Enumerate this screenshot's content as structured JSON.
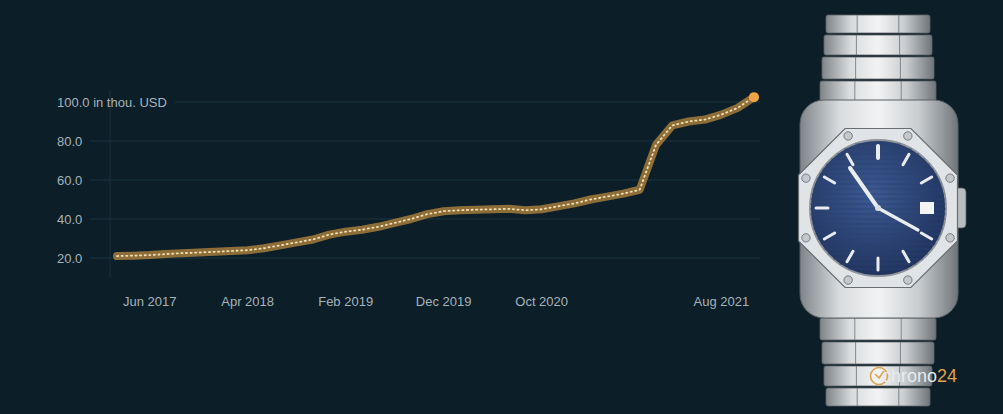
{
  "chart_data": {
    "type": "line",
    "categories": [
      null,
      null,
      "Jun 2017",
      null,
      null,
      null,
      null,
      null,
      "Apr 2018",
      null,
      null,
      null,
      null,
      null,
      "Feb 2019",
      null,
      null,
      null,
      null,
      null,
      "Dec 2019",
      null,
      null,
      null,
      null,
      null,
      "Oct 2020",
      null,
      null,
      null,
      null,
      null,
      null,
      null,
      null,
      null,
      null,
      "Aug 2021",
      null,
      null
    ],
    "values": [
      21.0,
      21.2,
      21.5,
      22.0,
      22.5,
      22.8,
      23.2,
      23.6,
      24.0,
      25.0,
      26.5,
      28.0,
      29.5,
      32.0,
      33.5,
      34.5,
      36.0,
      38.0,
      40.0,
      42.5,
      44.0,
      44.5,
      44.8,
      45.0,
      45.2,
      44.5,
      45.0,
      46.5,
      48.0,
      50.0,
      51.5,
      53.0,
      55.0,
      78.0,
      88.0,
      90.0,
      91.0,
      93.5,
      97.0,
      102.5
    ],
    "color": "#b8893f",
    "line_style": "dotted",
    "ylim": [
      10,
      106
    ],
    "yticks": [
      {
        "value": 20,
        "label": "20.0"
      },
      {
        "value": 40,
        "label": "40.0"
      },
      {
        "value": 60,
        "label": "60.0"
      },
      {
        "value": 80,
        "label": "80.0"
      },
      {
        "value": 100,
        "label": "100.0 in thou. USD"
      }
    ],
    "grid": true,
    "annotations": [
      "chrono24"
    ]
  }
}
